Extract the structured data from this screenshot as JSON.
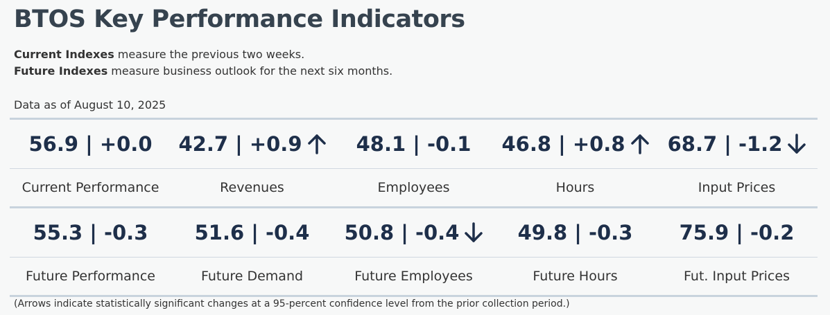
{
  "title": "BTOS Key Performance Indicators",
  "description": {
    "current_bold": "Current Indexes",
    "current_text": " measure the previous two weeks.",
    "future_bold": "Future Indexes",
    "future_text": " measure business outlook for the next six months."
  },
  "as_of": "Data as of August 10, 2025",
  "current_row": [
    {
      "value": "56.9 | +0.0",
      "label": "Current Performance",
      "arrow": "none"
    },
    {
      "value": "42.7 | +0.9",
      "label": "Revenues",
      "arrow": "up"
    },
    {
      "value": "48.1 | -0.1",
      "label": "Employees",
      "arrow": "none"
    },
    {
      "value": "46.8 | +0.8",
      "label": "Hours",
      "arrow": "up"
    },
    {
      "value": "68.7 | -1.2",
      "label": "Input Prices",
      "arrow": "down"
    }
  ],
  "future_row": [
    {
      "value": "55.3 | -0.3",
      "label": "Future Performance",
      "arrow": "none"
    },
    {
      "value": "51.6 | -0.4",
      "label": "Future Demand",
      "arrow": "none"
    },
    {
      "value": "50.8 | -0.4",
      "label": "Future Employees",
      "arrow": "down"
    },
    {
      "value": "49.8 | -0.3",
      "label": "Future Hours",
      "arrow": "none"
    },
    {
      "value": "75.9 | -0.2",
      "label": "Fut. Input Prices",
      "arrow": "none"
    }
  ],
  "footnote": "(Arrows indicate statistically significant changes at a 95-percent confidence level from the prior collection period.)",
  "colors": {
    "value_text": "#1e2f4a",
    "rule": "#c8d3dd",
    "background": "#f7f8f8"
  }
}
